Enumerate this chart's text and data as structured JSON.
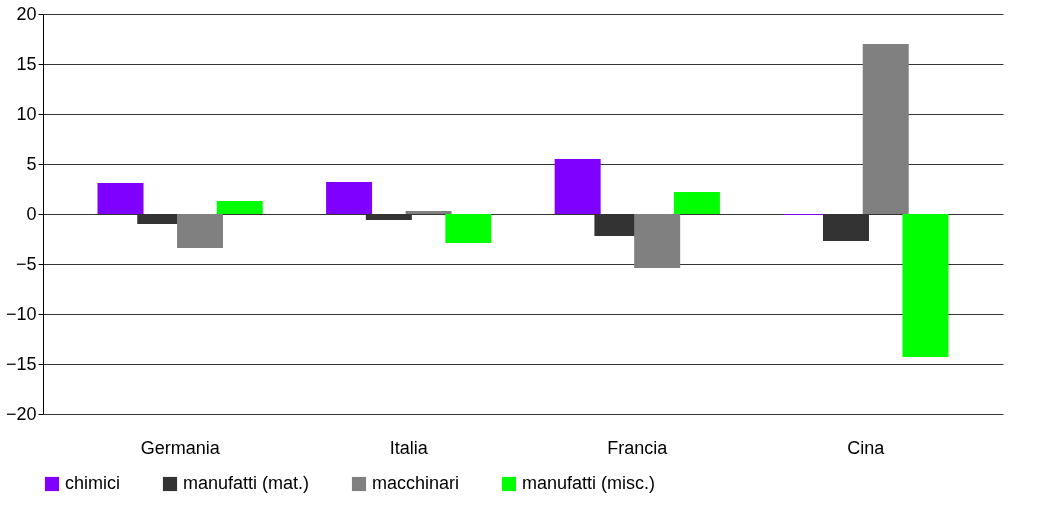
{
  "chart_data": {
    "type": "bar",
    "categories": [
      "Germania",
      "Italia",
      "Francia",
      "Cina"
    ],
    "series": [
      {
        "name": "chimici",
        "color": "#8000ff",
        "values": [
          3.1,
          3.2,
          5.5,
          -0.1
        ]
      },
      {
        "name": "manufatti (mat.)",
        "color": "#333333",
        "values": [
          -1.0,
          -0.6,
          -2.2,
          -2.7
        ]
      },
      {
        "name": "macchinari",
        "color": "#808080",
        "values": [
          -3.4,
          0.3,
          -5.4,
          17.0
        ]
      },
      {
        "name": "manufatti (misc.)",
        "color": "#00ff00",
        "values": [
          1.3,
          -2.9,
          2.2,
          -14.3
        ]
      }
    ],
    "ylim": [
      -20,
      20
    ],
    "yticks": [
      -20,
      -15,
      -10,
      -5,
      0,
      5,
      10,
      15,
      20
    ],
    "grid": "y",
    "legend": "bottom"
  }
}
